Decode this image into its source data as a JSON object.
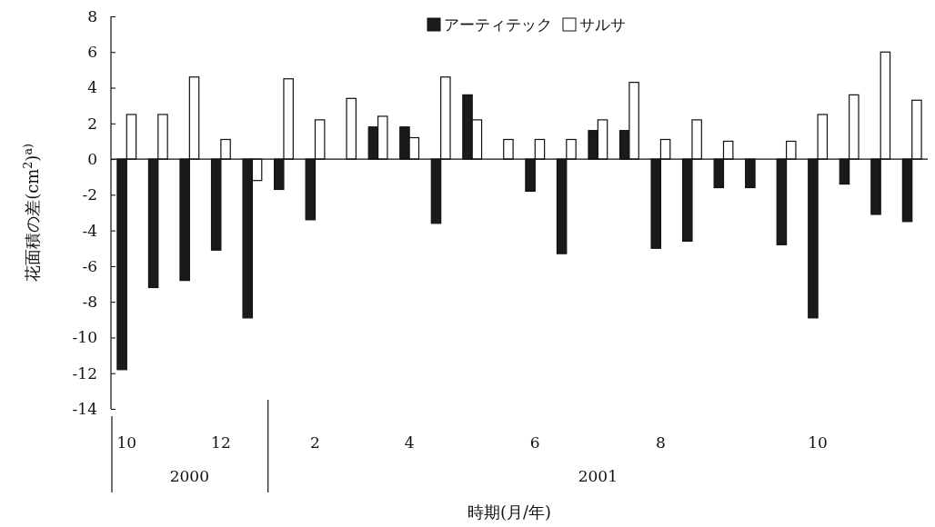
{
  "chart_data": {
    "type": "bar",
    "xlabel": "時期(月/年)",
    "ylabel": "花面積の差(cm$^{2}$)$^{a)}$",
    "categories": [
      "10",
      null,
      null,
      "12",
      null,
      null,
      "2",
      null,
      null,
      "4",
      null,
      null,
      null,
      "6",
      null,
      null,
      null,
      "8",
      null,
      null,
      null,
      null,
      "10",
      null,
      null,
      null
    ],
    "series": [
      {
        "name": "アーティテック",
        "color": "#1a1a1a",
        "values": [
          -11.8,
          -7.2,
          -6.8,
          -5.1,
          -8.9,
          -1.7,
          -3.4,
          0,
          1.8,
          1.8,
          -3.6,
          3.6,
          0,
          -1.8,
          -5.3,
          1.6,
          1.6,
          -5.0,
          -4.6,
          -1.6,
          -1.6,
          -4.8,
          -8.9,
          -1.4,
          -3.1,
          -3.5
        ]
      },
      {
        "name": "サルサ",
        "color": "#ffffff",
        "values": [
          2.5,
          2.5,
          4.6,
          1.1,
          -1.2,
          4.5,
          2.2,
          3.4,
          2.4,
          1.2,
          4.6,
          2.2,
          1.1,
          1.1,
          1.1,
          2.2,
          4.3,
          1.1,
          2.2,
          1.0,
          0,
          1.0,
          2.5,
          3.6,
          6.0,
          3.3
        ]
      }
    ],
    "ylim": [
      -14,
      8
    ],
    "yticks": [
      -14,
      -12,
      -10,
      -8,
      -6,
      -4,
      -2,
      0,
      2,
      4,
      6,
      8
    ],
    "legend": "top",
    "annotations": [
      "2000",
      "2001"
    ]
  }
}
